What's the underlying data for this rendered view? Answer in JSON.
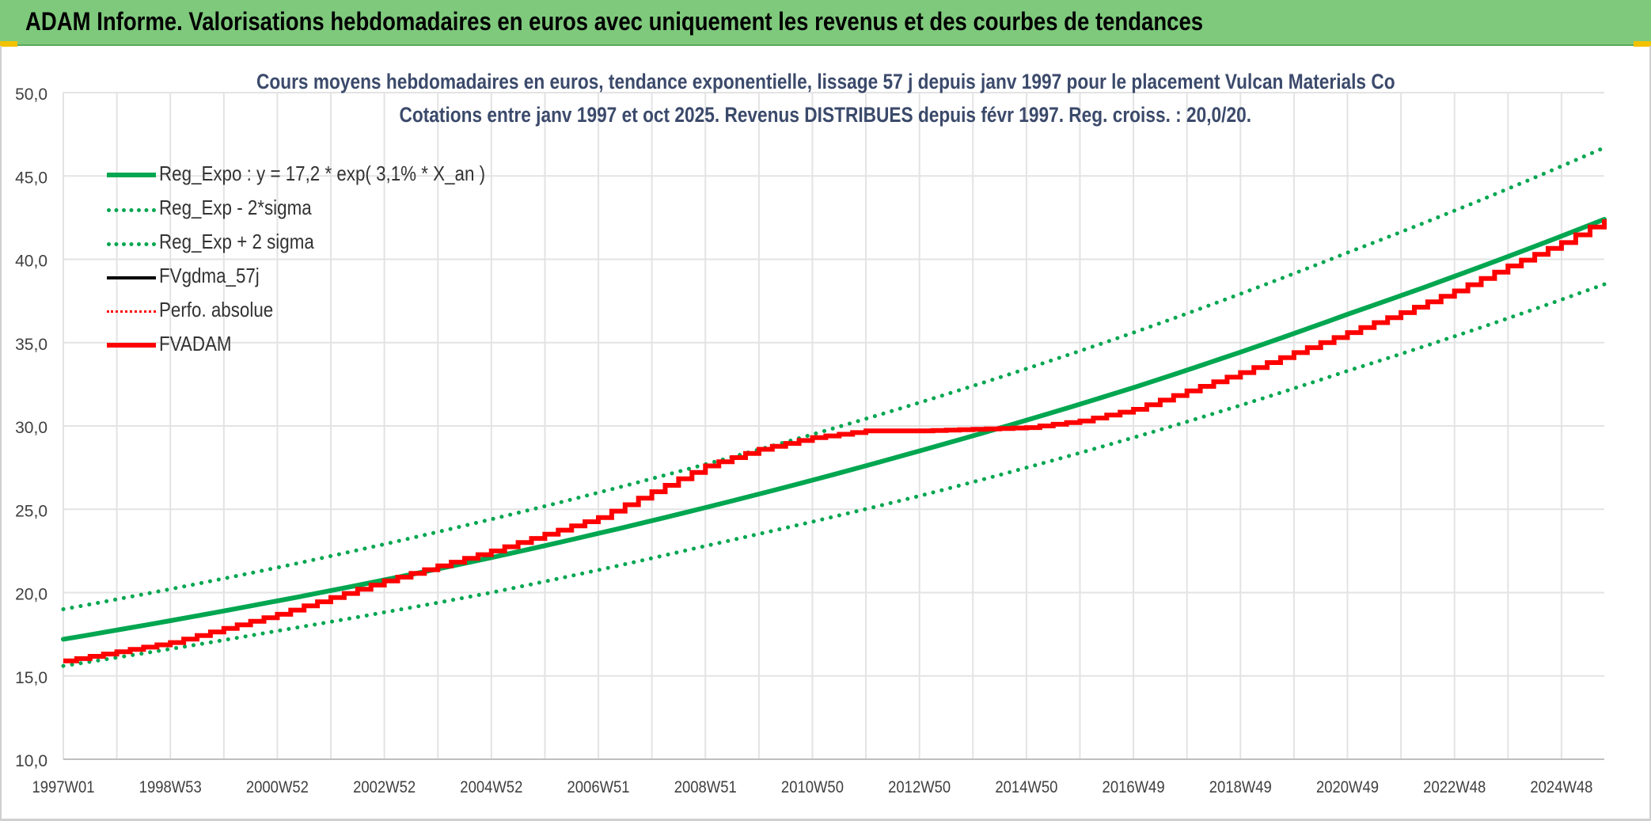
{
  "banner": {
    "title": "ADAM Informe. Valorisations hebdomadaires en euros avec uniquement les revenus et des courbes de tendances"
  },
  "colors": {
    "banner_bg": "#7ec97c",
    "trend_green": "#00a650",
    "adam_red": "#ff0000",
    "grid": "#e3e3e3",
    "axis_text": "#404040"
  },
  "chart_data": {
    "type": "line",
    "title": "Cours moyens hebdomadaires en euros, tendance exponentielle, lissage 57 j depuis janv 1997 pour le placement Vulcan Materials Co",
    "subtitle": "Cotations entre janv 1997 et oct 2025. Revenus DISTRIBUES depuis févr 1997. Reg. croiss. : 20,0/20.",
    "xlabel": "",
    "ylabel": "",
    "ylim": [
      10,
      50
    ],
    "yticks": [
      "10,0",
      "15,0",
      "20,0",
      "25,0",
      "30,0",
      "35,0",
      "40,0",
      "45,0",
      "50,0"
    ],
    "xticks": [
      "1997W01",
      "1998W53",
      "2000W52",
      "2002W52",
      "2004W52",
      "2006W51",
      "2008W51",
      "2010W50",
      "2012W50",
      "2014W50",
      "2016W49",
      "2018W49",
      "2020W49",
      "2022W48",
      "2024W48"
    ],
    "x_tick_years": [
      1997.0,
      1999.0,
      2001.0,
      2003.0,
      2005.0,
      2007.0,
      2009.0,
      2011.0,
      2013.0,
      2015.0,
      2017.0,
      2019.0,
      2021.0,
      2023.0,
      2025.0
    ],
    "x_range": [
      1997.0,
      2025.8
    ],
    "grid": true,
    "legend_position": "top-left",
    "series": [
      {
        "name": "Reg_Expo : y = 17,2 * exp( 3,1% *  X_an )",
        "style": "solid-thick",
        "color": "#00a650",
        "points": [
          [
            1997.0,
            17.2
          ],
          [
            2001.0,
            19.5
          ],
          [
            2005.0,
            22.1
          ],
          [
            2009.0,
            25.1
          ],
          [
            2013.0,
            28.5
          ],
          [
            2017.0,
            32.3
          ],
          [
            2021.0,
            36.7
          ],
          [
            2025.8,
            42.4
          ]
        ]
      },
      {
        "name": "Reg_Exp - 2*sigma",
        "style": "dotted",
        "color": "#00a650",
        "points": [
          [
            1997.0,
            15.6
          ],
          [
            2001.0,
            17.7
          ],
          [
            2005.0,
            20.0
          ],
          [
            2009.0,
            22.8
          ],
          [
            2013.0,
            25.8
          ],
          [
            2017.0,
            29.3
          ],
          [
            2021.0,
            33.3
          ],
          [
            2025.8,
            38.5
          ]
        ]
      },
      {
        "name": "Reg_Exp + 2 sigma",
        "style": "dotted",
        "color": "#00a650",
        "points": [
          [
            1997.0,
            19.0
          ],
          [
            2001.0,
            21.5
          ],
          [
            2005.0,
            24.4
          ],
          [
            2009.0,
            27.7
          ],
          [
            2013.0,
            31.4
          ],
          [
            2017.0,
            35.6
          ],
          [
            2021.0,
            40.4
          ],
          [
            2025.8,
            46.7
          ]
        ]
      },
      {
        "name": "FVgdma_57j",
        "style": "solid",
        "color": "#000000",
        "points": []
      },
      {
        "name": "Perfo. absolue",
        "style": "dotted-thin",
        "color": "#ff0000",
        "points": []
      },
      {
        "name": "FVADAM",
        "style": "solid-thick",
        "color": "#ff0000",
        "points": [
          [
            1997.0,
            15.9
          ],
          [
            1999.0,
            17.0
          ],
          [
            2001.0,
            18.7
          ],
          [
            2003.0,
            20.7
          ],
          [
            2005.0,
            22.5
          ],
          [
            2007.0,
            24.5
          ],
          [
            2009.0,
            27.6
          ],
          [
            2010.0,
            28.6
          ],
          [
            2011.0,
            29.3
          ],
          [
            2012.0,
            29.7
          ],
          [
            2013.0,
            29.7
          ],
          [
            2014.0,
            29.8
          ],
          [
            2015.0,
            29.9
          ],
          [
            2016.0,
            30.3
          ],
          [
            2017.0,
            31.0
          ],
          [
            2018.0,
            32.1
          ],
          [
            2019.0,
            33.2
          ],
          [
            2020.0,
            34.4
          ],
          [
            2021.0,
            35.6
          ],
          [
            2022.0,
            36.8
          ],
          [
            2023.0,
            38.1
          ],
          [
            2024.0,
            39.6
          ],
          [
            2025.0,
            41.0
          ],
          [
            2025.8,
            42.4
          ]
        ]
      }
    ]
  }
}
